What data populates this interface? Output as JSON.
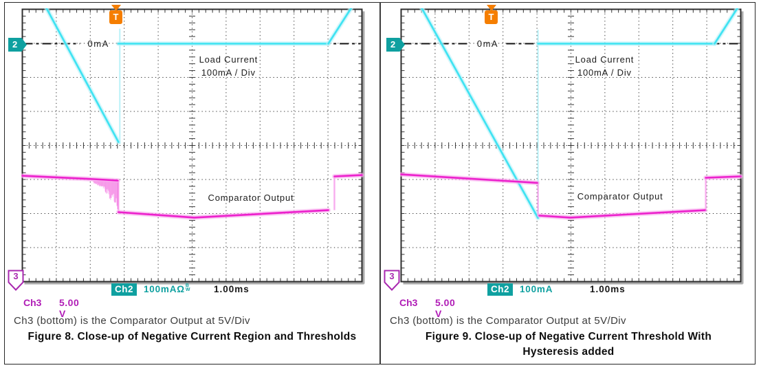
{
  "figure": {
    "panels": [
      {
        "scope": {
          "channel2_marker": "2",
          "channel3_marker": "3",
          "trigger_marker": "T",
          "readout": {
            "ch2_label": "Ch2",
            "ch2_scale": "100mA",
            "ch2_coupling_symbol": "Ω",
            "ch2_bw_top": "B",
            "ch2_bw_bottom": "W",
            "timebase": "1.00ms",
            "ch3_label": "Ch3",
            "ch3_scale": "5.00 V"
          }
        },
        "caption": "Ch3 (bottom) is the Comparator Output at 5V/Div",
        "title": "Figure 8. Close-up of Negative Current Region and Thresholds"
      },
      {
        "scope": {
          "channel2_marker": "2",
          "channel3_marker": "3",
          "trigger_marker": "T",
          "readout": {
            "ch2_label": "Ch2",
            "ch2_scale": "100mA",
            "timebase": "1.00ms",
            "ch3_label": "Ch3",
            "ch3_scale": "5.00 V"
          }
        },
        "caption": "Ch3 (bottom) is the Comparator Output at 5V/Div",
        "title": "Figure 9. Close-up of Negative Current Threshold With Hysteresis added"
      }
    ]
  },
  "chart_data": [
    {
      "type": "line",
      "title": "Figure 8 oscilloscope capture: negative current region and thresholds",
      "grid_divisions": {
        "x": 10,
        "y": 8
      },
      "timebase_per_div": "1.00ms",
      "zero_label": "0mA",
      "zero_label_x_div": 2.24,
      "zero_ref_div": 1.01,
      "annotations": [
        {
          "text": "Load Current",
          "x_div": 6.07,
          "y_div": 1.57
        },
        {
          "text": "100mA / Div",
          "x_div": 6.07,
          "y_div": 1.95
        },
        {
          "text": "Comparator Output",
          "x_div": 6.73,
          "y_div": 5.63
        }
      ],
      "series": [
        {
          "name": "Load Current (Ch2)",
          "color_key": "cyan",
          "scale_per_div": "100mA",
          "values_summary": {
            "start_mA": 100,
            "ramp_min_mA": -290,
            "flat_mA": 0,
            "end_mA": 100
          },
          "segments_div": [
            [
              [
                0.71,
                -0.03
              ],
              [
                2.83,
                3.9
              ]
            ],
            [
              [
                2.83,
                1.01
              ],
              [
                9.01,
                1.01
              ]
            ],
            [
              [
                9.01,
                1.01
              ],
              [
                9.68,
                -0.03
              ]
            ]
          ],
          "edge_lines_div": [
            [
              2.87,
              0.57,
              3.96
            ]
          ]
        },
        {
          "name": "Comparator Output (Ch3)",
          "color_key": "magenta",
          "scale_per_div": "5 V",
          "segments_div": [
            [
              [
                0,
                4.89
              ],
              [
                2.1,
                4.99
              ],
              [
                2.81,
                5.03
              ]
            ],
            [
              [
                2.83,
                5.96
              ],
              [
                5.06,
                6.12
              ],
              [
                9.01,
                5.9
              ]
            ],
            [
              [
                9.19,
                4.91
              ],
              [
                10.0,
                4.87
              ]
            ]
          ],
          "vertical_jumps_div": [
            [
              2.83,
              5.03,
              5.96
            ],
            [
              9.19,
              5.9,
              4.91
            ]
          ],
          "noise_zone_div": {
            "x0": 2.1,
            "x1": 2.81,
            "top_div": 5.0,
            "depth_div": 0.95
          }
        }
      ]
    },
    {
      "type": "line",
      "title": "Figure 9 oscilloscope capture: negative current threshold with hysteresis",
      "grid_divisions": {
        "x": 10,
        "y": 8
      },
      "timebase_per_div": "1.00ms",
      "zero_label": "0mA",
      "zero_label_x_div": 2.55,
      "zero_ref_div": 1.01,
      "annotations": [
        {
          "text": "Load Current",
          "x_div": 5.99,
          "y_div": 1.57
        },
        {
          "text": "100mA / Div",
          "x_div": 5.99,
          "y_div": 1.95
        },
        {
          "text": "Comparator Output",
          "x_div": 6.45,
          "y_div": 5.59
        }
      ],
      "series": [
        {
          "name": "Load Current (Ch2)",
          "color_key": "cyan",
          "scale_per_div": "100mA",
          "values_summary": {
            "start_mA": 100,
            "ramp_min_mA": -500,
            "flat_mA": 0,
            "end_mA": 100
          },
          "segments_div": [
            [
              [
                0.61,
                -0.03
              ],
              [
                4.03,
                6.13
              ]
            ],
            [
              [
                4.03,
                1.01
              ],
              [
                9.23,
                1.01
              ]
            ],
            [
              [
                9.23,
                1.01
              ],
              [
                9.9,
                -0.03
              ]
            ]
          ],
          "edge_lines_div": [
            [
              4.03,
              0.6,
              6.13
            ]
          ]
        },
        {
          "name": "Comparator Output (Ch3)",
          "color_key": "magenta",
          "scale_per_div": "5 V",
          "segments_div": [
            [
              [
                0,
                4.85
              ],
              [
                4.01,
                5.1
              ]
            ],
            [
              [
                4.07,
                6.06
              ],
              [
                4.98,
                6.12
              ],
              [
                8.95,
                5.9
              ]
            ],
            [
              [
                8.97,
                4.95
              ],
              [
                10.0,
                4.91
              ]
            ]
          ],
          "vertical_jumps_div": [
            [
              4.03,
              5.1,
              6.06
            ],
            [
              8.97,
              5.9,
              4.95
            ]
          ],
          "noise_zone_div": null
        }
      ]
    }
  ],
  "colors": {
    "cyan_trace": "#3FE3F2",
    "cyan_halo": "#B9F2F9",
    "magenta_trace": "#EC21CC",
    "magenta_halo": "#F8A9EE",
    "teal_badge": "#0FA0A0",
    "ch3_text": "#B01CB6",
    "trigger_orange": "#F57E00",
    "grid_ink": "#333333",
    "scope_text": "#1b1b1b",
    "caption_text": "#3b3b3b"
  }
}
